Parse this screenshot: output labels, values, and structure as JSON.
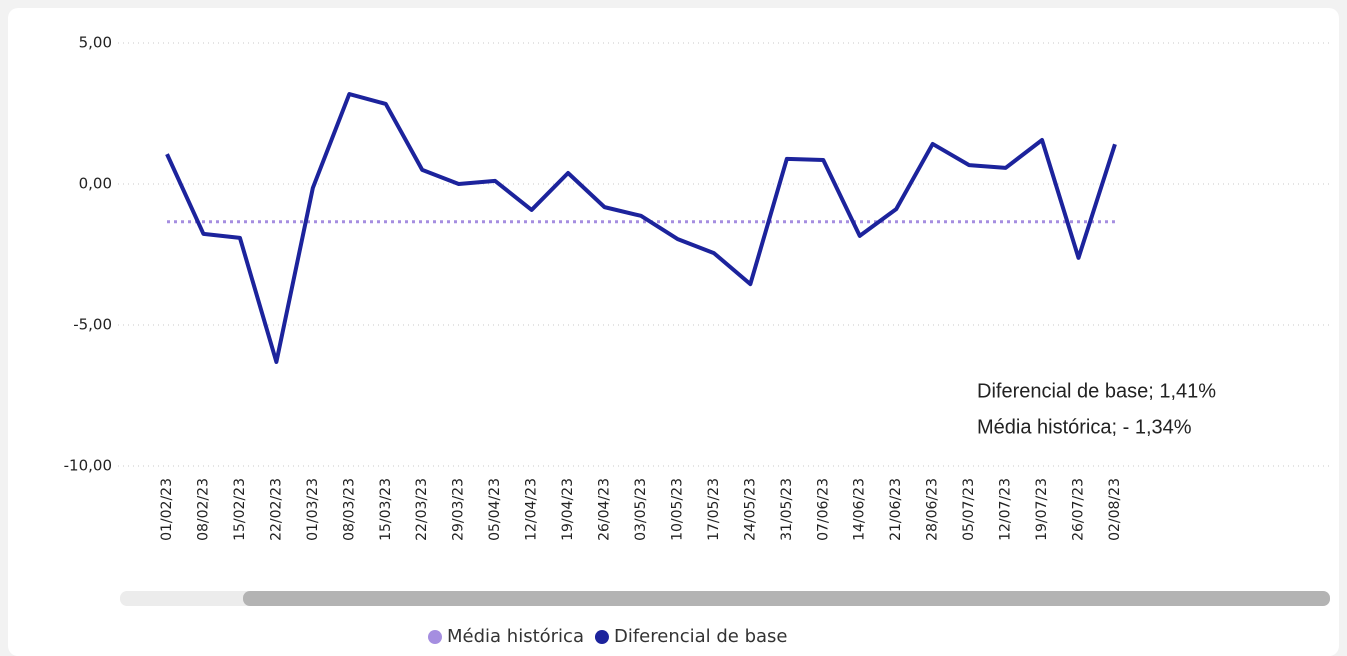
{
  "chart_data": {
    "type": "line",
    "categories": [
      "01/02/23",
      "08/02/23",
      "15/02/23",
      "22/02/23",
      "01/03/23",
      "08/03/23",
      "15/03/23",
      "22/03/23",
      "29/03/23",
      "05/04/23",
      "12/04/23",
      "19/04/23",
      "26/04/23",
      "03/05/23",
      "10/05/23",
      "17/05/23",
      "24/05/23",
      "31/05/23",
      "07/06/23",
      "14/06/23",
      "21/06/23",
      "28/06/23",
      "05/07/23",
      "12/07/23",
      "19/07/23",
      "26/07/23",
      "02/08/23"
    ],
    "series": [
      {
        "name": "Média histórica",
        "color": "#a58ee0",
        "dashed": true,
        "values": [
          -1.34,
          -1.34,
          -1.34,
          -1.34,
          -1.34,
          -1.34,
          -1.34,
          -1.34,
          -1.34,
          -1.34,
          -1.34,
          -1.34,
          -1.34,
          -1.34,
          -1.34,
          -1.34,
          -1.34,
          -1.34,
          -1.34,
          -1.34,
          -1.34,
          -1.34,
          -1.34,
          -1.34,
          -1.34,
          -1.34,
          -1.34
        ]
      },
      {
        "name": "Diferencial de base",
        "color": "#1c239c",
        "dashed": false,
        "values": [
          1.06,
          -1.77,
          -1.91,
          -6.31,
          -0.14,
          3.19,
          2.84,
          0.5,
          0.0,
          0.11,
          -0.92,
          0.39,
          -0.82,
          -1.13,
          -1.95,
          -2.45,
          -3.55,
          0.89,
          0.85,
          -1.84,
          -0.89,
          1.42,
          0.67,
          0.57,
          1.56,
          -2.62,
          1.41
        ]
      }
    ],
    "ylim": [
      -10,
      5
    ],
    "yticks": [
      {
        "value": -10,
        "label": "-10,00"
      },
      {
        "value": -5,
        "label": "-5,00"
      },
      {
        "value": 0,
        "label": "0,00"
      },
      {
        "value": 5,
        "label": "5,00"
      }
    ],
    "grid": true,
    "annotations": [
      "Diferencial de base; 1,41%",
      "Média histórica; - 1,34%"
    ],
    "legend": "bottom"
  }
}
